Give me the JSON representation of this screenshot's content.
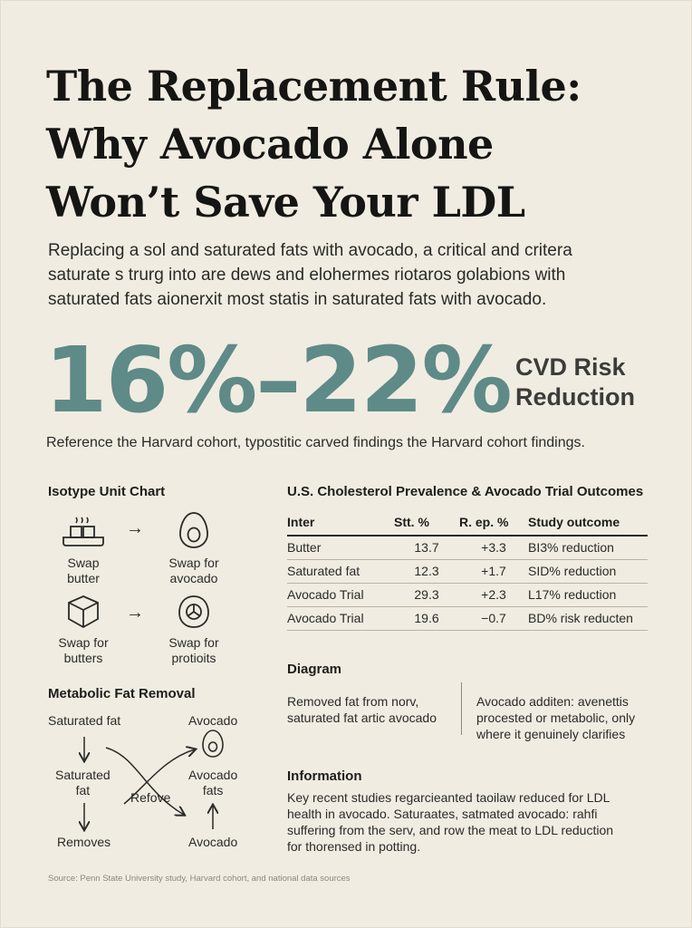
{
  "title_lines": [
    "The Replacement Rule:",
    "Why Avocado Alone",
    "Won’t Save Your LDL"
  ],
  "intro_lines": [
    "Replacing a sol and saturated fats with avocado, a critical and critera",
    "saturate s trurg into are dews and elohermes riotaros golabions with",
    "saturated fats aionerxit most statis in saturated fats with avocado."
  ],
  "stat": {
    "value": "16%–22%",
    "label_lines": [
      "CVD Risk",
      "Reduction"
    ],
    "color": "#5e8a87"
  },
  "reference": "Reference the Harvard cohort, typostitic carved findings the Harvard cohort findings.",
  "isotype": {
    "heading": "Isotype Unit Chart",
    "arrow": "→",
    "cells": [
      {
        "icon": "butter-dish-icon",
        "lines": [
          "Swap",
          "butter"
        ]
      },
      {
        "icon": "avocado-icon",
        "lines": [
          "Swap for",
          "avocado"
        ]
      },
      {
        "icon": "box-icon",
        "lines": [
          "Swap for",
          "butters"
        ]
      },
      {
        "icon": "avocado-slice-icon",
        "lines": [
          "Swap for",
          "protioits"
        ]
      }
    ]
  },
  "metabolic": {
    "heading": "Metabolic Fat Removal",
    "left_top": "Saturated fat",
    "left_mid_lines": [
      "Saturated",
      "fat"
    ],
    "left_bottom": "Removes",
    "center": "Refove",
    "right_top": "Avocado",
    "right_mid_lines": [
      "Avocado",
      "fats"
    ],
    "right_bottom": "Avocado"
  },
  "table": {
    "heading": "U.S. Cholesterol Prevalence & Avocado Trial Outcomes",
    "columns": [
      "Inter",
      "Stt. %",
      "R. ep. %",
      "Study outcome"
    ],
    "rows": [
      [
        "Butter",
        "13.7",
        "+3.3",
        "BI3% reduction"
      ],
      [
        "Saturated fat",
        "12.3",
        "+1.7",
        "SID% reduction"
      ],
      [
        "Avocado Trial",
        "29.3",
        "+2.3",
        "L17% reduction"
      ],
      [
        "Avocado Trial",
        "19.6",
        "−0.7",
        "BD% risk reducten"
      ]
    ]
  },
  "diagram": {
    "heading": "Diagram",
    "left_lines": [
      "Removed fat from norv,",
      "saturated fat artic avocado"
    ],
    "right_lines": [
      "Avocado additen: avenettis",
      "procested or metabolic, only",
      "where it genuinely clarifies"
    ]
  },
  "information": {
    "heading": "Information",
    "lines": [
      "Key recent studies regarcieanted taoilaw reduced for LDL",
      "health in avocado. Saturaates, satmated avocado: rahfi",
      "suffering from the serv, and row the meat to LDL reduction",
      "for thorensed in potting."
    ]
  },
  "source": "Source: Penn State University study, Harvard cohort, and national data sources"
}
